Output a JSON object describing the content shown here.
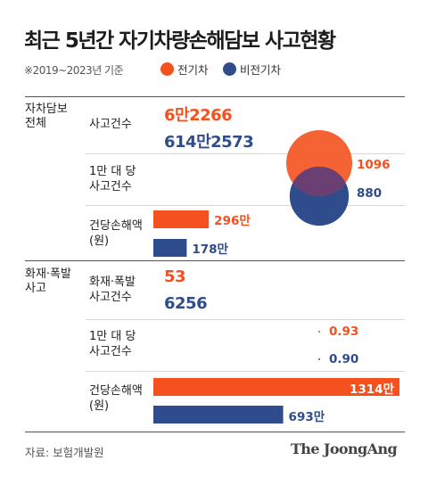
{
  "title": "최근 5년간 자기차량손해담보 사고현황",
  "subtitle": "※2019~2023년 기준",
  "legend": [
    {
      "label": "전기차",
      "color": "#f4511e"
    },
    {
      "label": "비전기차",
      "color": "#2f4d8c"
    }
  ],
  "sections": {
    "all": "자차담보\n전체",
    "fire": "화재·폭발\n사고"
  },
  "rows": {
    "accidents": "사고건수",
    "per10k": "1만 대 당\n사고건수",
    "loss": "건당손해액\n(원)",
    "fire_accidents": "화재·폭발\n사고건수",
    "fire_per10k": "1만 대 당\n사고건수",
    "fire_loss": "건당손해액\n(원)"
  },
  "values": {
    "ev_accidents": "6만2266",
    "nonev_accidents": "614만2573",
    "ev_per10k": "1096",
    "nonev_per10k": "880",
    "ev_loss": "296만",
    "nonev_loss": "178만",
    "ev_fire": "53",
    "nonev_fire": "6256",
    "ev_fire_per10k": "0.93",
    "nonev_fire_per10k": "0.90",
    "ev_fire_loss": "1314만",
    "nonev_fire_loss": "693만"
  },
  "chart_data": {
    "type": "bar",
    "series": [
      {
        "name": "전기차",
        "color": "#f4511e",
        "accidents": 62266,
        "per10k": 1096,
        "loss_manwon": 296,
        "fire_accidents": 53,
        "fire_per10k": 0.93,
        "fire_loss_manwon": 1314
      },
      {
        "name": "비전기차",
        "color": "#2f4d8c",
        "accidents": 6142573,
        "per10k": 880,
        "loss_manwon": 178,
        "fire_accidents": 6256,
        "fire_per10k": 0.9,
        "fire_loss_manwon": 693
      }
    ]
  },
  "source": "자료: 보험개발원",
  "brand": "The JoongAng"
}
